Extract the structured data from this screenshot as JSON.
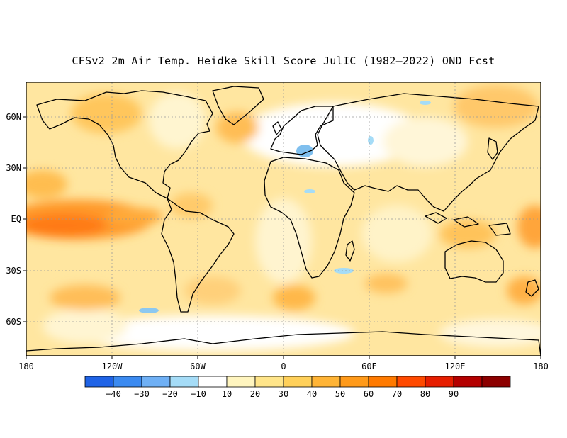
{
  "title": "CFSv2 2m Air Temp. Heidke Skill Score JulIC (1982–2022) OND Fcst",
  "lat_labels": [
    "60N",
    "30N",
    "EQ",
    "30S",
    "60S"
  ],
  "lon_labels": [
    "180",
    "120W",
    "60W",
    "0",
    "60E",
    "120E",
    "180"
  ],
  "colorbar": {
    "colors": [
      "#1f63e6",
      "#3b8af0",
      "#6fb0f5",
      "#a5dcf7",
      "#ffffff",
      "#fff5bf",
      "#ffe58a",
      "#ffd05a",
      "#ffb436",
      "#ff9a1a",
      "#ff7a00",
      "#ff4a00",
      "#e61e00",
      "#b40000",
      "#8c0000"
    ],
    "labels": [
      "−40",
      "−30",
      "−20",
      "−10",
      "10",
      "20",
      "30",
      "40",
      "50",
      "60",
      "70",
      "80",
      "90"
    ]
  }
}
